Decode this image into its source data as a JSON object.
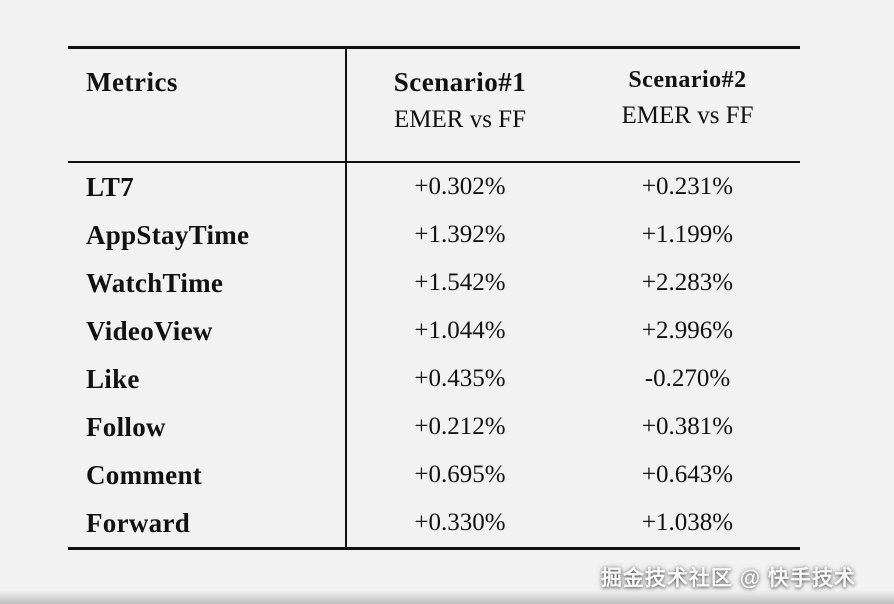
{
  "page": {
    "background": "#f2f2f2",
    "text_color": "#111111"
  },
  "table": {
    "header": {
      "metrics_label": "Metrics",
      "col1_title": "Scenario#1",
      "col1_subtitle": "EMER vs FF",
      "col2_title": "Scenario#2",
      "col2_subtitle": "EMER vs FF"
    },
    "rows": [
      {
        "metric": "LT7",
        "scenario1": "+0.302%",
        "scenario2": "+0.231%"
      },
      {
        "metric": "AppStayTime",
        "scenario1": "+1.392%",
        "scenario2": "+1.199%"
      },
      {
        "metric": "WatchTime",
        "scenario1": "+1.542%",
        "scenario2": "+2.283%"
      },
      {
        "metric": "VideoView",
        "scenario1": "+1.044%",
        "scenario2": "+2.996%"
      },
      {
        "metric": "Like",
        "scenario1": "+0.435%",
        "scenario2": "-0.270%"
      },
      {
        "metric": "Follow",
        "scenario1": "+0.212%",
        "scenario2": "+0.381%"
      },
      {
        "metric": "Comment",
        "scenario1": "+0.695%",
        "scenario2": "+0.643%"
      },
      {
        "metric": "Forward",
        "scenario1": "+0.330%",
        "scenario2": "+1.038%"
      }
    ]
  },
  "watermark": "掘金技术社区 @ 快手技术",
  "chart_data": {
    "type": "table",
    "columns": [
      "Metrics",
      "Scenario#1 EMER vs FF",
      "Scenario#2 EMER vs FF"
    ],
    "rows": [
      [
        "LT7",
        "+0.302%",
        "+0.231%"
      ],
      [
        "AppStayTime",
        "+1.392%",
        "+1.199%"
      ],
      [
        "WatchTime",
        "+1.542%",
        "+2.283%"
      ],
      [
        "VideoView",
        "+1.044%",
        "+2.996%"
      ],
      [
        "Like",
        "+0.435%",
        "-0.270%"
      ],
      [
        "Follow",
        "+0.212%",
        "+0.381%"
      ],
      [
        "Comment",
        "+0.695%",
        "+0.643%"
      ],
      [
        "Forward",
        "+0.330%",
        "+1.038%"
      ]
    ]
  }
}
